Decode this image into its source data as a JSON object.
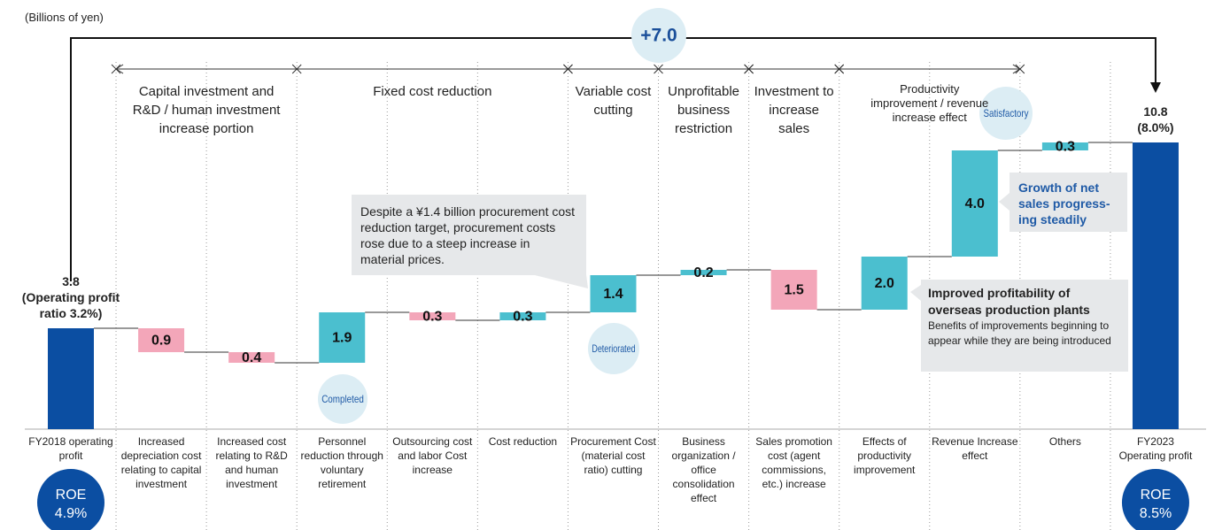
{
  "chart_data": {
    "type": "waterfall",
    "unit_label": "(Billions of yen)",
    "categories": [
      "FY2018 operating profit",
      "Increased depreciation cost relating to capital investment",
      "Increased cost relating to R&D and human investment",
      "Personnel reduction through voluntary retirement",
      "Outsourcing cost and labor Cost increase",
      "Cost reduction",
      "Procurement Cost (material cost ratio) cutting",
      "Business organization / office consolidation effect",
      "Sales promotion cost (agent commissions, etc.) increase",
      "Effects of productivity improvement",
      "Revenue Increase effect",
      "Others",
      "FY2023 Operating profit"
    ],
    "values": [
      3.8,
      -0.9,
      -0.4,
      1.9,
      -0.3,
      0.3,
      1.4,
      0.2,
      -1.5,
      2.0,
      4.0,
      0.3,
      10.8
    ],
    "value_labels": [
      "3.8",
      "0.9",
      "0.4",
      "1.9",
      "0.3",
      "0.3",
      "1.4",
      "0.2",
      "1.5",
      "2.0",
      "4.0",
      "0.3",
      "10.8"
    ],
    "value_notes": [
      "(Operating profit ratio 3.2%)",
      null,
      null,
      null,
      null,
      null,
      null,
      null,
      null,
      null,
      null,
      null,
      "(8.0%)"
    ],
    "measure": [
      "absolute",
      "relative",
      "relative",
      "relative",
      "relative",
      "relative",
      "relative",
      "relative",
      "relative",
      "relative",
      "relative",
      "relative",
      "total"
    ],
    "colors": {
      "total": "#0b4ea2",
      "increase": "#4bbfcf",
      "decrease": "#f3a6b9"
    },
    "ylim": [
      0,
      16
    ],
    "total_change": {
      "value": 7.0,
      "label": "+7.0"
    },
    "groups": [
      "Capital investment and R&D / human investment increase portion",
      "Fixed cost reduction",
      "Variable cost cutting",
      "Unprofitable business restriction",
      "Investment to increase sales",
      "Productivity improvement / revenue increase effect"
    ],
    "badges": [
      "Completed",
      "Deteriorated",
      "Satisfactory"
    ],
    "roe": [
      {
        "title": "ROE",
        "value": "4.9%"
      },
      {
        "title": "ROE",
        "value": "8.5%"
      }
    ],
    "callouts": [
      {
        "text": "Despite a ¥1.4 billion procurement cost reduction target, procurement costs rose due to a steep increase in material prices."
      },
      {
        "text": "Growth of net sales progress-ing steadily"
      },
      {
        "title": "Improved profitability of overseas production plants",
        "text": "Benefits of improvements beginning to appear while they are being introduced"
      }
    ]
  }
}
